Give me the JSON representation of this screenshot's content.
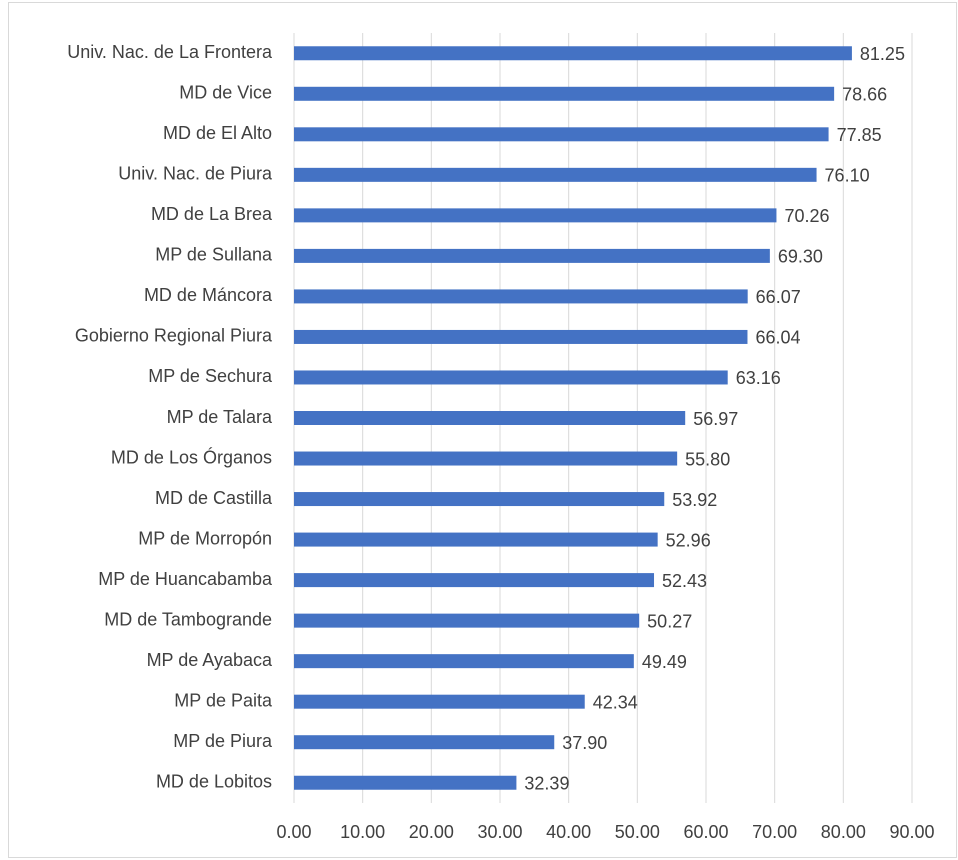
{
  "chart_data": {
    "type": "bar",
    "orientation": "horizontal",
    "categories": [
      "Univ. Nac. de La Frontera",
      "MD de Vice",
      "MD de El Alto",
      "Univ. Nac. de Piura",
      "MD de La Brea",
      "MP de Sullana",
      "MD de Máncora",
      "Gobierno Regional Piura",
      "MP de Sechura",
      "MP de Talara",
      "MD de Los Órganos",
      "MD de Castilla",
      "MP de Morropón",
      "MP de Huancabamba",
      "MD de Tambogrande",
      "MP de Ayabaca",
      "MP de Paita",
      "MP de Piura",
      "MD de Lobitos"
    ],
    "values": [
      81.25,
      78.66,
      77.85,
      76.1,
      70.26,
      69.3,
      66.07,
      66.04,
      63.16,
      56.97,
      55.8,
      53.92,
      52.96,
      52.43,
      50.27,
      49.49,
      42.34,
      37.9,
      32.39
    ],
    "value_labels": [
      "81.25",
      "78.66",
      "77.85",
      "76.10",
      "70.26",
      "69.30",
      "66.07",
      "66.04",
      "63.16",
      "56.97",
      "55.80",
      "53.92",
      "52.96",
      "52.43",
      "50.27",
      "49.49",
      "42.34",
      "37.90",
      "32.39"
    ],
    "color": "#4472c4",
    "xlim": [
      0,
      90
    ],
    "xticks": [
      {
        "value": 0,
        "label": "0.00"
      },
      {
        "value": 10,
        "label": "10.00"
      },
      {
        "value": 20,
        "label": "20.00"
      },
      {
        "value": 30,
        "label": "30.00"
      },
      {
        "value": 40,
        "label": "40.00"
      },
      {
        "value": 50,
        "label": "50.00"
      },
      {
        "value": 60,
        "label": "60.00"
      },
      {
        "value": 70,
        "label": "70.00"
      },
      {
        "value": 80,
        "label": "80.00"
      },
      {
        "value": 90,
        "label": "90.00"
      }
    ],
    "grid": true
  }
}
